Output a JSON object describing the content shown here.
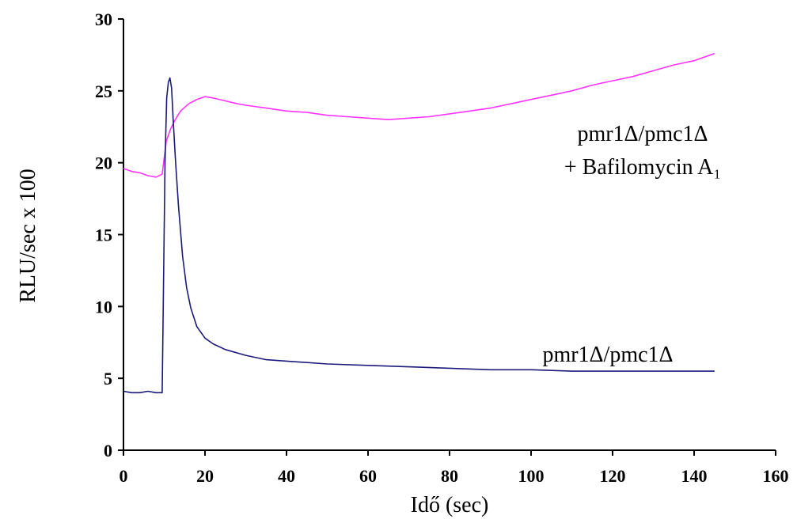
{
  "chart_data": {
    "type": "line",
    "title": "",
    "xlabel": "Idő (sec)",
    "ylabel": "RLU/sec x 100",
    "xlim": [
      0,
      160
    ],
    "ylim": [
      0,
      30
    ],
    "xticks": [
      0,
      20,
      40,
      60,
      80,
      100,
      120,
      140,
      160
    ],
    "yticks": [
      0,
      5,
      10,
      15,
      20,
      25,
      30
    ],
    "grid": false,
    "legend": "none",
    "series": [
      {
        "label_lines": [
          "pmr1Δ/pmc1Δ",
          "+ Bafilomycin A₁"
        ],
        "color": "#ff33ff",
        "x": [
          0,
          2,
          4,
          6,
          8,
          9.5,
          10.5,
          11.5,
          12.5,
          14,
          16,
          18,
          20,
          22,
          25,
          28,
          30,
          35,
          40,
          45,
          50,
          55,
          60,
          65,
          70,
          75,
          80,
          85,
          90,
          95,
          100,
          105,
          110,
          115,
          120,
          125,
          130,
          135,
          140,
          145
        ],
        "y": [
          19.6,
          19.4,
          19.3,
          19.1,
          19.0,
          19.2,
          21.5,
          22.3,
          22.9,
          23.6,
          24.1,
          24.4,
          24.6,
          24.5,
          24.3,
          24.1,
          24.0,
          23.8,
          23.6,
          23.5,
          23.3,
          23.2,
          23.1,
          23.0,
          23.1,
          23.2,
          23.4,
          23.6,
          23.8,
          24.1,
          24.4,
          24.7,
          25.0,
          25.4,
          25.7,
          26.0,
          26.4,
          26.8,
          27.1,
          27.6
        ]
      },
      {
        "label_lines": [
          "pmr1Δ/pmc1Δ"
        ],
        "color": "#1a1a7a",
        "x": [
          0,
          2,
          4,
          6,
          8,
          9.5,
          10.2,
          10.6,
          11.0,
          11.4,
          11.8,
          12.2,
          12.8,
          13.5,
          14.5,
          15.5,
          16.5,
          18,
          20,
          22,
          25,
          30,
          35,
          40,
          50,
          60,
          70,
          80,
          90,
          100,
          110,
          120,
          130,
          140,
          145
        ],
        "y": [
          4.1,
          4.0,
          4.0,
          4.1,
          4.0,
          4.0,
          20.0,
          24.5,
          25.6,
          25.9,
          25.2,
          23.0,
          20.0,
          17.0,
          13.5,
          11.3,
          9.9,
          8.6,
          7.8,
          7.4,
          7.0,
          6.6,
          6.3,
          6.2,
          6.0,
          5.9,
          5.8,
          5.7,
          5.6,
          5.6,
          5.5,
          5.5,
          5.5,
          5.5,
          5.5
        ]
      }
    ]
  }
}
